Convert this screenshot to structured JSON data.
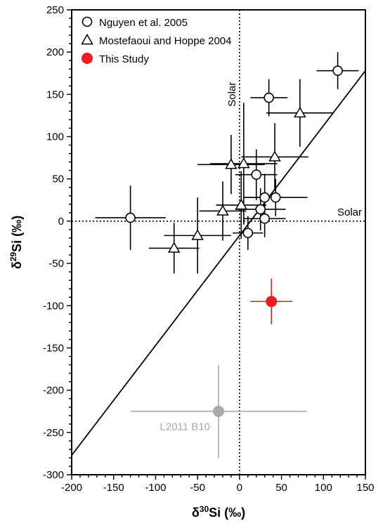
{
  "chart_data": {
    "type": "scatter",
    "title": "",
    "xlabel_main": "δ",
    "xlabel_sup": "30",
    "xlabel_rest": "Si (‰)",
    "ylabel_main": "δ",
    "ylabel_sup": "29",
    "ylabel_rest": "Si (‰)",
    "xlim": [
      -200,
      150
    ],
    "ylim": [
      -300,
      250
    ],
    "xticks": [
      -200,
      -150,
      -100,
      -50,
      0,
      50,
      100,
      150
    ],
    "yticks": [
      -300,
      -250,
      -200,
      -150,
      -100,
      -50,
      0,
      50,
      100,
      150,
      200,
      250
    ],
    "grid": false,
    "legend_position": "top-left",
    "solar_lines": {
      "x": 0,
      "y": 0,
      "label_vertical": "Solar",
      "label_horizontal": "Solar"
    },
    "reference_line": {
      "x": [
        -200,
        150
      ],
      "y": [
        -277,
        178
      ]
    },
    "series": [
      {
        "name": "Nguyen et al. 2005",
        "marker": "circle-open",
        "points": [
          {
            "x": 117,
            "y": 178,
            "xerr": 25,
            "yerr": 22
          },
          {
            "x": 35,
            "y": 146,
            "xerr": 22,
            "yerr": 22
          },
          {
            "x": 20,
            "y": 55,
            "xerr": 25,
            "yerr": 30
          },
          {
            "x": 30,
            "y": 28,
            "xerr": 22,
            "yerr": 28
          },
          {
            "x": 43,
            "y": 28,
            "xerr": 38,
            "yerr": 22
          },
          {
            "x": 25,
            "y": 14,
            "xerr": 30,
            "yerr": 25
          },
          {
            "x": 30,
            "y": 3,
            "xerr": 25,
            "yerr": 22
          },
          {
            "x": 10,
            "y": -14,
            "xerr": 18,
            "yerr": 20
          },
          {
            "x": -130,
            "y": 4,
            "xerr": 42,
            "yerr": 38
          }
        ]
      },
      {
        "name": "Mostefaoui and Hoppe 2004",
        "marker": "triangle-open",
        "points": [
          {
            "x": 72,
            "y": 128,
            "xerr": 40,
            "yerr": 40
          },
          {
            "x": -10,
            "y": 67,
            "xerr": 40,
            "yerr": 35
          },
          {
            "x": 5,
            "y": 68,
            "xerr": 40,
            "yerr": 72
          },
          {
            "x": 42,
            "y": 76,
            "xerr": 40,
            "yerr": 40
          },
          {
            "x": 2,
            "y": 19,
            "xerr": 30,
            "yerr": 40
          },
          {
            "x": -20,
            "y": 12,
            "xerr": 28,
            "yerr": 35
          },
          {
            "x": -50,
            "y": -17,
            "xerr": 40,
            "yerr": 45
          },
          {
            "x": -78,
            "y": -32,
            "xerr": 30,
            "yerr": 30
          }
        ]
      },
      {
        "name": "This Study",
        "marker": "circle-filled",
        "color": "#ee1c1c",
        "points": [
          {
            "x": 38,
            "y": -95,
            "xerr": 25,
            "yerr": 27
          }
        ]
      },
      {
        "name": "L2011 B10",
        "marker": "circle-filled",
        "color": "#a9a9a9",
        "label": "L2011 B10",
        "points": [
          {
            "x": -25,
            "y": -225,
            "xerr": 105,
            "yerr": 55
          }
        ]
      }
    ],
    "legend": [
      {
        "label": "Nguyen et al. 2005",
        "marker": "circle-open"
      },
      {
        "label": "Mostefaoui and Hoppe 2004",
        "marker": "triangle-open"
      },
      {
        "label": "This Study",
        "marker": "circle-filled",
        "color": "#ee1c1c"
      }
    ]
  }
}
